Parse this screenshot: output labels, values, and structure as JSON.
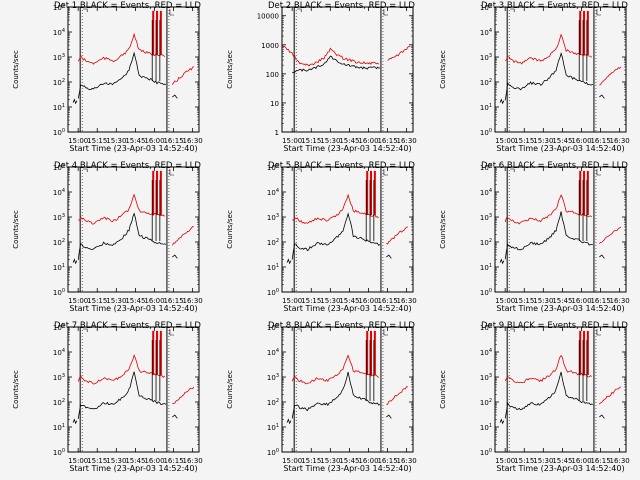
{
  "common": {
    "x_tick_labels": [
      "15:00",
      "15:15",
      "15:30",
      "15:45",
      "16:00",
      "16:15",
      "16:30"
    ],
    "xlabel": "Start Time (23-Apr-03 14:52:40)",
    "ylabel": "Counts/sec",
    "colors": {
      "events": "#000000",
      "lld": "#e00000",
      "marker": "#000000"
    }
  },
  "chart_data": [
    {
      "type": "line",
      "title": "Det 1 BLACK = Events, RED = LLD",
      "xlabel": "Start Time (23-Apr-03 14:52:40)",
      "ylabel": "Counts/sec",
      "yscale": "log",
      "ylim": [
        1,
        100000
      ],
      "y_ticks": [
        "10^0",
        "10^1",
        "10^2",
        "10^3",
        "10^4",
        "10^5"
      ],
      "xlim": [
        "14:52",
        "16:35"
      ],
      "x_ticks": [
        "15:00",
        "15:15",
        "15:30",
        "15:45",
        "16:00",
        "16:15",
        "16:30"
      ],
      "series": [
        {
          "name": "Events",
          "x": [
            "15:00",
            "15:02",
            "15:06",
            "15:12",
            "15:20",
            "15:28",
            "15:35",
            "15:40",
            "15:44",
            "15:48",
            "15:52",
            "15:56",
            "15:59",
            "16:02",
            "16:06",
            "16:09"
          ],
          "values": [
            20,
            80,
            60,
            50,
            90,
            80,
            150,
            300,
            1500,
            180,
            150,
            130,
            110,
            95,
            85,
            80
          ]
        },
        {
          "name": "LLD",
          "x": [
            "15:00",
            "15:02",
            "15:06",
            "15:12",
            "15:20",
            "15:28",
            "15:35",
            "15:40",
            "15:44",
            "15:48",
            "15:52",
            "15:56",
            "15:59",
            "16:02",
            "16:06",
            "16:09",
            "16:14",
            "16:20",
            "16:25",
            "16:31"
          ],
          "values": [
            700,
            1000,
            700,
            550,
            900,
            700,
            1200,
            2000,
            8000,
            1800,
            1600,
            1400,
            1300,
            1200,
            1100,
            1000,
            80,
            150,
            250,
            400
          ]
        }
      ],
      "annotations": [
        "spikes near 15:59, 16:02, 16:05 up to ~80000",
        "data gap 16:09–16:14"
      ]
    },
    {
      "type": "line",
      "title": "Det 2 BLACK = Events, RED = LLD",
      "xlabel": "Start Time (23-Apr-03 14:52:40)",
      "ylabel": "Counts/sec",
      "yscale": "log",
      "ylim": [
        1,
        20000
      ],
      "y_ticks": [
        "1",
        "10",
        "100",
        "1000",
        "10000"
      ],
      "xlim": [
        "14:52",
        "16:35"
      ],
      "x_ticks": [
        "15:00",
        "15:15",
        "15:30",
        "15:45",
        "16:00",
        "16:15",
        "16:30"
      ],
      "series": [
        {
          "name": "Events",
          "x": [
            "15:00",
            "15:06",
            "15:15",
            "15:25",
            "15:30",
            "15:34",
            "15:40",
            "15:50",
            "16:00",
            "16:09"
          ],
          "values": [
            120,
            130,
            140,
            220,
            400,
            300,
            220,
            170,
            160,
            160
          ]
        },
        {
          "name": "LLD",
          "x": [
            "14:52",
            "15:00",
            "15:06",
            "15:15",
            "15:25",
            "15:30",
            "15:34",
            "15:40",
            "15:50",
            "16:00",
            "16:09",
            "16:15",
            "16:25",
            "16:33"
          ],
          "values": [
            1000,
            500,
            220,
            200,
            350,
            700,
            500,
            350,
            260,
            230,
            230,
            280,
            500,
            900
          ]
        }
      ]
    },
    {
      "type": "line",
      "title": "Det 3 BLACK = Events, RED = LLD",
      "xlabel": "Start Time (23-Apr-03 14:52:40)",
      "ylabel": "Counts/sec",
      "yscale": "log",
      "ylim": [
        1,
        100000
      ],
      "y_ticks": [
        "10^0",
        "10^1",
        "10^2",
        "10^3",
        "10^4",
        "10^5"
      ],
      "xlim": [
        "14:52",
        "16:35"
      ],
      "x_ticks": [
        "15:00",
        "15:15",
        "15:30",
        "15:45",
        "16:00",
        "16:15",
        "16:30"
      ],
      "series": [
        {
          "name": "Events",
          "x": [
            "15:00",
            "15:02",
            "15:06",
            "15:12",
            "15:20",
            "15:28",
            "15:35",
            "15:40",
            "15:44",
            "15:48",
            "15:52",
            "15:56",
            "15:59",
            "16:02",
            "16:06",
            "16:09"
          ],
          "values": [
            20,
            80,
            60,
            50,
            90,
            80,
            150,
            300,
            1500,
            180,
            150,
            130,
            110,
            95,
            85,
            80
          ]
        },
        {
          "name": "LLD",
          "x": [
            "15:00",
            "15:02",
            "15:06",
            "15:12",
            "15:20",
            "15:28",
            "15:35",
            "15:40",
            "15:44",
            "15:48",
            "15:52",
            "15:56",
            "15:59",
            "16:02",
            "16:06",
            "16:09",
            "16:14",
            "16:20",
            "16:25",
            "16:31"
          ],
          "values": [
            700,
            1000,
            700,
            550,
            900,
            700,
            1200,
            2000,
            8000,
            1800,
            1600,
            1400,
            1300,
            1200,
            1100,
            1000,
            80,
            150,
            250,
            400
          ]
        }
      ]
    },
    {
      "type": "line",
      "title": "Det 4 BLACK = Events, RED = LLD",
      "xlabel": "Start Time (23-Apr-03 14:52:40)",
      "ylabel": "Counts/sec",
      "yscale": "log",
      "ylim": [
        1,
        100000
      ],
      "y_ticks": [
        "10^0",
        "10^1",
        "10^2",
        "10^3",
        "10^4",
        "10^5"
      ],
      "xlim": [
        "14:52",
        "16:35"
      ],
      "x_ticks": [
        "15:00",
        "15:15",
        "15:30",
        "15:45",
        "16:00",
        "16:15",
        "16:30"
      ],
      "series": [
        {
          "name": "Events",
          "x": [
            "15:00",
            "15:02",
            "15:06",
            "15:12",
            "15:20",
            "15:28",
            "15:35",
            "15:40",
            "15:44",
            "15:48",
            "15:52",
            "15:56",
            "15:59",
            "16:02",
            "16:06",
            "16:09"
          ],
          "values": [
            20,
            80,
            60,
            50,
            90,
            80,
            150,
            300,
            1500,
            180,
            150,
            130,
            110,
            95,
            85,
            80
          ]
        },
        {
          "name": "LLD",
          "x": [
            "15:00",
            "15:02",
            "15:06",
            "15:12",
            "15:20",
            "15:28",
            "15:35",
            "15:40",
            "15:44",
            "15:48",
            "15:52",
            "15:56",
            "15:59",
            "16:02",
            "16:06",
            "16:09",
            "16:14",
            "16:20",
            "16:25",
            "16:31"
          ],
          "values": [
            700,
            1000,
            700,
            550,
            900,
            700,
            1200,
            2000,
            8000,
            1800,
            1600,
            1400,
            1300,
            1200,
            1100,
            1000,
            80,
            150,
            250,
            400
          ]
        }
      ]
    },
    {
      "type": "line",
      "title": "Det 5 BLACK = Events, RED = LLD",
      "xlabel": "Start Time (23-Apr-03 14:52:40)",
      "ylabel": "Counts/sec",
      "yscale": "log",
      "ylim": [
        1,
        100000
      ],
      "y_ticks": [
        "10^0",
        "10^1",
        "10^2",
        "10^3",
        "10^4",
        "10^5"
      ],
      "xlim": [
        "14:52",
        "16:35"
      ],
      "x_ticks": [
        "15:00",
        "15:15",
        "15:30",
        "15:45",
        "16:00",
        "16:15",
        "16:30"
      ],
      "series": [
        {
          "name": "Events",
          "x": [
            "15:00",
            "15:02",
            "15:06",
            "15:12",
            "15:20",
            "15:28",
            "15:35",
            "15:40",
            "15:44",
            "15:48",
            "15:52",
            "15:56",
            "15:59",
            "16:02",
            "16:06",
            "16:09"
          ],
          "values": [
            20,
            80,
            60,
            50,
            90,
            80,
            150,
            300,
            1500,
            180,
            150,
            130,
            110,
            95,
            85,
            80
          ]
        },
        {
          "name": "LLD",
          "x": [
            "15:00",
            "15:02",
            "15:06",
            "15:12",
            "15:20",
            "15:28",
            "15:35",
            "15:40",
            "15:44",
            "15:48",
            "15:52",
            "15:56",
            "15:59",
            "16:02",
            "16:06",
            "16:09",
            "16:14",
            "16:20",
            "16:25",
            "16:31"
          ],
          "values": [
            700,
            1000,
            700,
            550,
            900,
            700,
            1200,
            2000,
            8000,
            1800,
            1600,
            1400,
            1300,
            1200,
            1100,
            1000,
            80,
            150,
            250,
            400
          ]
        }
      ]
    },
    {
      "type": "line",
      "title": "Det 6 BLACK = Events, RED = LLD",
      "xlabel": "Start Time (23-Apr-03 14:52:40)",
      "ylabel": "Counts/sec",
      "yscale": "log",
      "ylim": [
        1,
        100000
      ],
      "y_ticks": [
        "10^0",
        "10^1",
        "10^2",
        "10^3",
        "10^4",
        "10^5"
      ],
      "xlim": [
        "14:52",
        "16:35"
      ],
      "x_ticks": [
        "15:00",
        "15:15",
        "15:30",
        "15:45",
        "16:00",
        "16:15",
        "16:30"
      ],
      "series": [
        {
          "name": "Events",
          "x": [
            "15:00",
            "15:02",
            "15:06",
            "15:12",
            "15:20",
            "15:28",
            "15:35",
            "15:40",
            "15:44",
            "15:48",
            "15:52",
            "15:56",
            "15:59",
            "16:02",
            "16:06",
            "16:09"
          ],
          "values": [
            20,
            80,
            60,
            50,
            90,
            80,
            150,
            300,
            1500,
            180,
            150,
            130,
            110,
            95,
            85,
            80
          ]
        },
        {
          "name": "LLD",
          "x": [
            "15:00",
            "15:02",
            "15:06",
            "15:12",
            "15:20",
            "15:28",
            "15:35",
            "15:40",
            "15:44",
            "15:48",
            "15:52",
            "15:56",
            "15:59",
            "16:02",
            "16:06",
            "16:09",
            "16:14",
            "16:20",
            "16:25",
            "16:31"
          ],
          "values": [
            700,
            1000,
            700,
            550,
            900,
            700,
            1200,
            2000,
            8000,
            1800,
            1600,
            1400,
            1300,
            1200,
            1100,
            1000,
            80,
            150,
            250,
            400
          ]
        }
      ]
    },
    {
      "type": "line",
      "title": "Det 7 BLACK = Events, RED = LLD",
      "xlabel": "Start Time (23-Apr-03 14:52:40)",
      "ylabel": "Counts/sec",
      "yscale": "log",
      "ylim": [
        1,
        100000
      ],
      "y_ticks": [
        "10^0",
        "10^1",
        "10^2",
        "10^3",
        "10^4",
        "10^5"
      ],
      "xlim": [
        "14:52",
        "16:35"
      ],
      "x_ticks": [
        "15:00",
        "15:15",
        "15:30",
        "15:45",
        "16:00",
        "16:15",
        "16:30"
      ],
      "series": [
        {
          "name": "Events",
          "x": [
            "15:00",
            "15:02",
            "15:06",
            "15:12",
            "15:20",
            "15:28",
            "15:35",
            "15:40",
            "15:44",
            "15:48",
            "15:52",
            "15:56",
            "15:59",
            "16:02",
            "16:06",
            "16:09"
          ],
          "values": [
            20,
            80,
            60,
            50,
            90,
            80,
            150,
            300,
            1500,
            180,
            150,
            130,
            110,
            95,
            85,
            80
          ]
        },
        {
          "name": "LLD",
          "x": [
            "15:00",
            "15:02",
            "15:06",
            "15:12",
            "15:20",
            "15:28",
            "15:35",
            "15:40",
            "15:44",
            "15:48",
            "15:52",
            "15:56",
            "15:59",
            "16:02",
            "16:06",
            "16:09",
            "16:14",
            "16:20",
            "16:25",
            "16:31"
          ],
          "values": [
            700,
            1000,
            700,
            550,
            900,
            700,
            1200,
            2000,
            8000,
            1800,
            1600,
            1400,
            1300,
            1200,
            1100,
            1000,
            80,
            150,
            250,
            400
          ]
        }
      ]
    },
    {
      "type": "line",
      "title": "Det 8 BLACK = Events, RED = LLD",
      "xlabel": "Start Time (23-Apr-03 14:52:40)",
      "ylabel": "Counts/sec",
      "yscale": "log",
      "ylim": [
        1,
        100000
      ],
      "y_ticks": [
        "10^0",
        "10^1",
        "10^2",
        "10^3",
        "10^4",
        "10^5"
      ],
      "xlim": [
        "14:52",
        "16:35"
      ],
      "x_ticks": [
        "15:00",
        "15:15",
        "15:30",
        "15:45",
        "16:00",
        "16:15",
        "16:30"
      ],
      "series": [
        {
          "name": "Events",
          "x": [
            "15:00",
            "15:02",
            "15:06",
            "15:12",
            "15:20",
            "15:28",
            "15:35",
            "15:40",
            "15:44",
            "15:48",
            "15:52",
            "15:56",
            "15:59",
            "16:02",
            "16:06",
            "16:09"
          ],
          "values": [
            20,
            80,
            60,
            50,
            90,
            80,
            150,
            300,
            1500,
            180,
            150,
            130,
            110,
            95,
            85,
            80
          ]
        },
        {
          "name": "LLD",
          "x": [
            "15:00",
            "15:02",
            "15:06",
            "15:12",
            "15:20",
            "15:28",
            "15:35",
            "15:40",
            "15:44",
            "15:48",
            "15:52",
            "15:56",
            "15:59",
            "16:02",
            "16:06",
            "16:09",
            "16:14",
            "16:20",
            "16:25",
            "16:31"
          ],
          "values": [
            700,
            1000,
            700,
            550,
            900,
            700,
            1200,
            2000,
            8000,
            1800,
            1600,
            1400,
            1300,
            1200,
            1100,
            1000,
            80,
            150,
            250,
            400
          ]
        }
      ]
    },
    {
      "type": "line",
      "title": "Det 9 BLACK = Events, RED = LLD",
      "xlabel": "Start Time (23-Apr-03 14:52:40)",
      "ylabel": "Counts/sec",
      "yscale": "log",
      "ylim": [
        1,
        100000
      ],
      "y_ticks": [
        "10^0",
        "10^1",
        "10^2",
        "10^3",
        "10^4",
        "10^5"
      ],
      "xlim": [
        "14:52",
        "16:35"
      ],
      "x_ticks": [
        "15:00",
        "15:15",
        "15:30",
        "15:45",
        "16:00",
        "16:15",
        "16:30"
      ],
      "series": [
        {
          "name": "Events",
          "x": [
            "15:00",
            "15:02",
            "15:06",
            "15:12",
            "15:20",
            "15:28",
            "15:35",
            "15:40",
            "15:44",
            "15:48",
            "15:52",
            "15:56",
            "15:59",
            "16:02",
            "16:06",
            "16:09"
          ],
          "values": [
            20,
            80,
            60,
            50,
            90,
            80,
            150,
            300,
            1500,
            180,
            150,
            130,
            110,
            95,
            85,
            80
          ]
        },
        {
          "name": "LLD",
          "x": [
            "15:00",
            "15:02",
            "15:06",
            "15:12",
            "15:20",
            "15:28",
            "15:35",
            "15:40",
            "15:44",
            "15:48",
            "15:52",
            "15:56",
            "15:59",
            "16:02",
            "16:06",
            "16:09",
            "16:14",
            "16:20",
            "16:25",
            "16:31"
          ],
          "values": [
            700,
            1000,
            700,
            550,
            900,
            700,
            1200,
            2000,
            8000,
            1800,
            1600,
            1400,
            1300,
            1200,
            1100,
            1000,
            80,
            150,
            250,
            400
          ]
        }
      ]
    }
  ]
}
